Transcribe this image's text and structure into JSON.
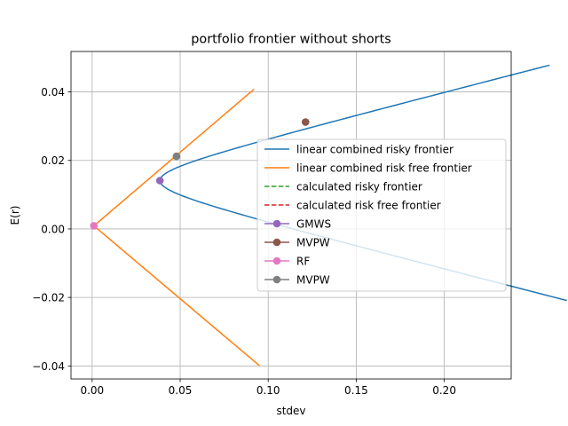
{
  "chart_data": {
    "type": "line",
    "title": "portfolio frontier without shorts",
    "xlabel": "stdev",
    "ylabel": "E(r)",
    "xlim": [
      -0.012,
      0.238
    ],
    "ylim": [
      -0.0438,
      0.0518
    ],
    "xticks": [
      0.0,
      0.05,
      0.1,
      0.15,
      0.2
    ],
    "xtick_labels": [
      "0.00",
      "0.05",
      "0.10",
      "0.15",
      "0.20"
    ],
    "yticks": [
      -0.04,
      -0.02,
      0.0,
      0.02,
      0.04
    ],
    "ytick_labels": [
      "−0.04",
      "−0.02",
      "0.00",
      "0.02",
      "0.04"
    ],
    "grid": true,
    "legend_position": "center-right",
    "series": [
      {
        "name": "linear combined risky frontier",
        "kind": "hyperbola",
        "color": "#1f77b4",
        "style": "solid",
        "params": {
          "sigma_min": 0.0385,
          "mu_min": 0.0141,
          "a": 0.00505
        },
        "mu_range": [
          -0.0209,
          0.0478
        ]
      },
      {
        "name": "linear combined risk free frontier",
        "kind": "segments",
        "color": "#ff7f0e",
        "style": "solid",
        "segments": [
          [
            [
              0.001,
              0.0009
            ],
            [
              0.092,
              0.0408
            ]
          ],
          [
            [
              0.001,
              0.0009
            ],
            [
              0.095,
              -0.0399
            ]
          ]
        ]
      },
      {
        "name": "calculated risky frontier",
        "kind": "none",
        "color": "#2ca02c",
        "style": "dashed"
      },
      {
        "name": "calculated risk free frontier",
        "kind": "none",
        "color": "#d62728",
        "style": "dashed"
      },
      {
        "name": "GMWS",
        "kind": "point",
        "color": "#9467bd",
        "x": 0.0385,
        "y": 0.0141
      },
      {
        "name": "MVPW",
        "kind": "point",
        "color": "#8c564b",
        "x": 0.1212,
        "y": 0.0312
      },
      {
        "name": "RF",
        "kind": "point",
        "color": "#e377c2",
        "x": 0.001,
        "y": 0.0009
      },
      {
        "name": "MVPW",
        "kind": "point",
        "color": "#7f7f7f",
        "x": 0.0479,
        "y": 0.0212
      }
    ]
  }
}
